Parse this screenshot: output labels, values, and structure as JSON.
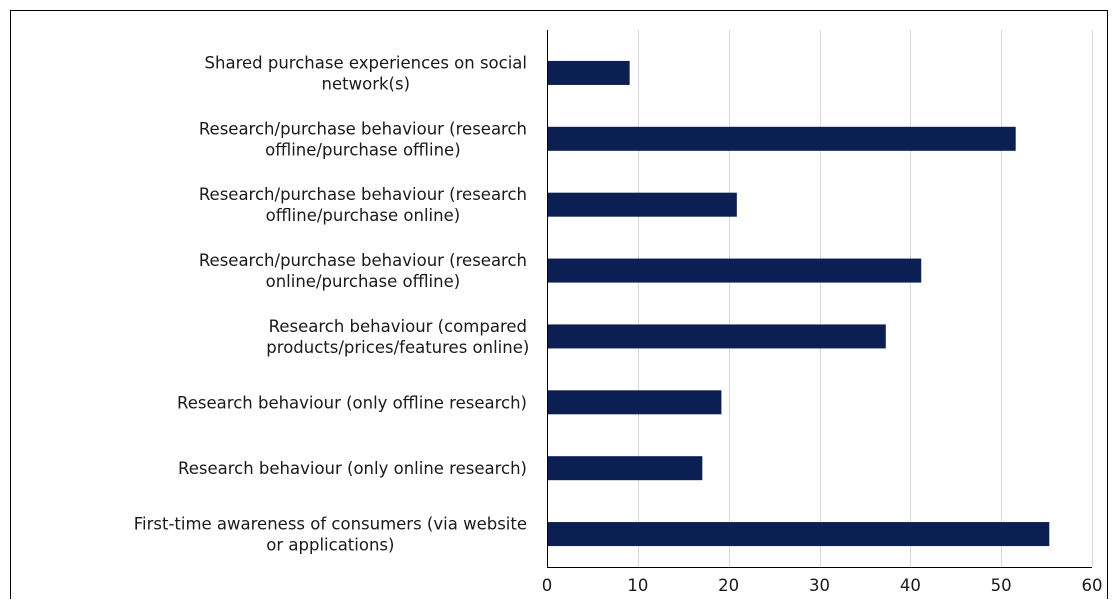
{
  "chart_data": {
    "type": "bar",
    "orientation": "horizontal",
    "categories": [
      [
        "Shared purchase experiences on social",
        "network(s)"
      ],
      [
        "Research/purchase behaviour (research",
        "offline/purchase offline)"
      ],
      [
        "Research/purchase behaviour (research",
        "offline/purchase online)"
      ],
      [
        "Research/purchase behaviour (research",
        "online/purchase offline)"
      ],
      [
        "Research behaviour (compared",
        "products/prices/features online)"
      ],
      [
        "Research behaviour (only offline research)"
      ],
      [
        "Research behaviour (only online research)"
      ],
      [
        "First-time awareness of consumers (via website",
        "or applications)"
      ]
    ],
    "values": [
      9.1,
      51.6,
      20.9,
      41.2,
      37.3,
      19.2,
      17.1,
      55.3
    ],
    "xlim": [
      0,
      60
    ],
    "xticks": [
      0,
      10,
      20,
      30,
      40,
      50,
      60
    ],
    "grid": true,
    "bar_color": "#0b1f52",
    "grid_color": "#d9d9d9",
    "title": "",
    "xlabel": "",
    "ylabel": ""
  }
}
